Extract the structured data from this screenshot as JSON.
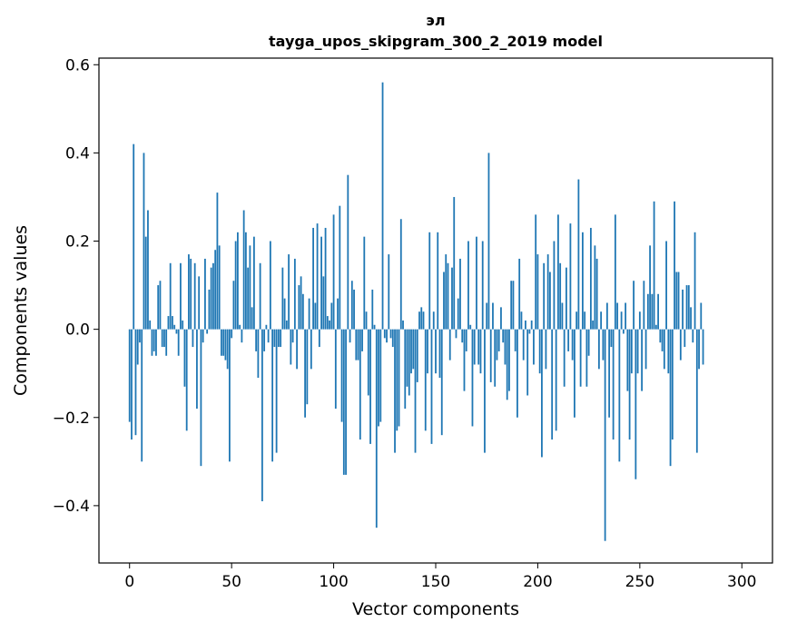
{
  "chart_data": {
    "type": "bar",
    "title": "эл",
    "subtitle": "tayga_upos_skipgram_300_2_2019 model",
    "xlabel": "Vector components",
    "ylabel": "Components values",
    "xlim": [
      -15,
      315
    ],
    "ylim": [
      -0.53,
      0.615
    ],
    "xticks": [
      0,
      50,
      100,
      150,
      200,
      250,
      300
    ],
    "xtick_labels": [
      "0",
      "50",
      "100",
      "150",
      "200",
      "250",
      "300"
    ],
    "yticks": [
      -0.4,
      -0.2,
      0.0,
      0.2,
      0.4,
      0.6
    ],
    "ytick_labels": [
      "−0.4",
      "−0.2",
      "0.0",
      "0.2",
      "0.4",
      "0.6"
    ],
    "bar_color": "#1f77b4",
    "grid": false,
    "legend": "none",
    "values": [
      -0.21,
      -0.25,
      0.42,
      -0.24,
      -0.08,
      -0.03,
      -0.3,
      0.4,
      0.21,
      0.27,
      0.02,
      -0.06,
      -0.05,
      -0.06,
      0.1,
      0.11,
      -0.04,
      -0.04,
      -0.06,
      0.03,
      0.15,
      0.03,
      0.01,
      -0.01,
      -0.06,
      0.15,
      0.02,
      -0.13,
      -0.23,
      0.17,
      0.16,
      -0.04,
      0.15,
      -0.18,
      0.12,
      -0.31,
      -0.03,
      0.16,
      -0.01,
      0.09,
      0.14,
      0.15,
      0.18,
      0.31,
      0.19,
      -0.06,
      -0.06,
      -0.07,
      -0.09,
      -0.3,
      -0.02,
      0.11,
      0.2,
      0.22,
      0.01,
      -0.03,
      0.27,
      0.22,
      0.14,
      0.19,
      0.05,
      0.21,
      -0.05,
      -0.11,
      0.15,
      -0.39,
      -0.05,
      0.01,
      -0.03,
      0.2,
      -0.3,
      -0.04,
      -0.28,
      -0.04,
      -0.04,
      0.14,
      0.07,
      0.02,
      0.17,
      -0.08,
      -0.03,
      0.16,
      -0.09,
      0.1,
      0.12,
      0.08,
      -0.2,
      -0.17,
      0.07,
      -0.09,
      0.23,
      0.06,
      0.24,
      -0.04,
      0.21,
      0.12,
      0.23,
      0.03,
      0.02,
      0.06,
      0.26,
      -0.18,
      0.07,
      0.28,
      -0.21,
      -0.33,
      -0.33,
      0.35,
      -0.03,
      0.11,
      0.09,
      -0.07,
      -0.07,
      -0.25,
      -0.05,
      0.21,
      0.04,
      -0.15,
      -0.26,
      0.09,
      0.01,
      -0.45,
      -0.22,
      -0.21,
      0.56,
      -0.02,
      -0.03,
      0.17,
      -0.02,
      -0.04,
      -0.28,
      -0.23,
      -0.22,
      0.25,
      0.02,
      -0.18,
      -0.13,
      -0.15,
      -0.1,
      -0.09,
      -0.28,
      -0.12,
      0.04,
      0.05,
      0.04,
      -0.23,
      -0.1,
      0.22,
      -0.26,
      0.04,
      -0.1,
      0.22,
      -0.11,
      -0.24,
      0.13,
      0.17,
      0.15,
      -0.07,
      0.14,
      0.3,
      -0.02,
      0.07,
      0.16,
      -0.03,
      -0.14,
      -0.05,
      0.2,
      0.01,
      -0.22,
      -0.08,
      0.21,
      -0.08,
      -0.1,
      0.2,
      -0.28,
      0.06,
      0.4,
      -0.12,
      0.06,
      -0.13,
      -0.07,
      -0.05,
      0.05,
      -0.03,
      -0.08,
      -0.16,
      -0.14,
      0.11,
      0.11,
      -0.05,
      -0.2,
      0.16,
      0.04,
      -0.07,
      0.02,
      -0.15,
      -0.01,
      0.02,
      -0.08,
      0.26,
      0.17,
      -0.1,
      -0.29,
      0.15,
      -0.09,
      0.17,
      0.13,
      -0.25,
      0.2,
      -0.23,
      0.26,
      0.15,
      0.06,
      -0.13,
      0.14,
      -0.05,
      0.24,
      -0.07,
      -0.2,
      0.04,
      0.34,
      -0.13,
      0.22,
      0.04,
      -0.13,
      -0.06,
      0.23,
      0.02,
      0.19,
      0.16,
      -0.09,
      0.04,
      -0.07,
      -0.48,
      0.06,
      -0.2,
      -0.04,
      -0.25,
      0.26,
      0.06,
      -0.3,
      0.04,
      -0.01,
      0.06,
      -0.14,
      -0.25,
      -0.1,
      0.11,
      -0.34,
      -0.1,
      0.04,
      -0.14,
      0.11,
      -0.09,
      0.08,
      0.19,
      0.08,
      0.29,
      0.01,
      0.08,
      -0.03,
      -0.05,
      -0.09,
      0.2,
      -0.1,
      -0.31,
      -0.25,
      0.29,
      0.13,
      0.13,
      -0.07,
      0.09,
      -0.04,
      0.1,
      0.1,
      0.05,
      -0.03,
      0.22,
      -0.28,
      -0.09,
      0.06,
      -0.08
    ]
  }
}
